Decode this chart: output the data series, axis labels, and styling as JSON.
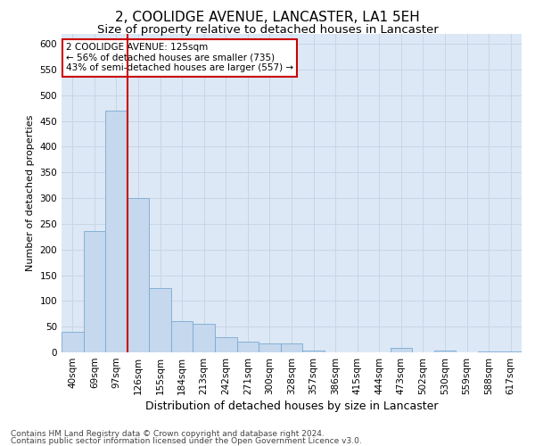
{
  "title": "2, COOLIDGE AVENUE, LANCASTER, LA1 5EH",
  "subtitle": "Size of property relative to detached houses in Lancaster",
  "xlabel": "Distribution of detached houses by size in Lancaster",
  "ylabel": "Number of detached properties",
  "categories": [
    "40sqm",
    "69sqm",
    "97sqm",
    "126sqm",
    "155sqm",
    "184sqm",
    "213sqm",
    "242sqm",
    "271sqm",
    "300sqm",
    "328sqm",
    "357sqm",
    "386sqm",
    "415sqm",
    "444sqm",
    "473sqm",
    "502sqm",
    "530sqm",
    "559sqm",
    "588sqm",
    "617sqm"
  ],
  "values": [
    40,
    235,
    470,
    300,
    125,
    60,
    55,
    30,
    20,
    18,
    18,
    3,
    0,
    0,
    0,
    8,
    0,
    3,
    0,
    1,
    2
  ],
  "bar_color": "#c5d8ee",
  "bar_edge_color": "#7aaad0",
  "grid_color": "#c8d5e5",
  "background_color": "#dce8f5",
  "vline_color": "#cc0000",
  "annotation_text": "2 COOLIDGE AVENUE: 125sqm\n← 56% of detached houses are smaller (735)\n43% of semi-detached houses are larger (557) →",
  "annotation_box_color": "#ffffff",
  "annotation_box_edge": "#cc0000",
  "ylim": [
    0,
    620
  ],
  "yticks": [
    0,
    50,
    100,
    150,
    200,
    250,
    300,
    350,
    400,
    450,
    500,
    550,
    600
  ],
  "footer_line1": "Contains HM Land Registry data © Crown copyright and database right 2024.",
  "footer_line2": "Contains public sector information licensed under the Open Government Licence v3.0.",
  "title_fontsize": 11,
  "subtitle_fontsize": 9.5,
  "xlabel_fontsize": 9,
  "ylabel_fontsize": 8,
  "tick_fontsize": 7.5,
  "footer_fontsize": 6.5,
  "fig_width": 6.0,
  "fig_height": 5.0
}
